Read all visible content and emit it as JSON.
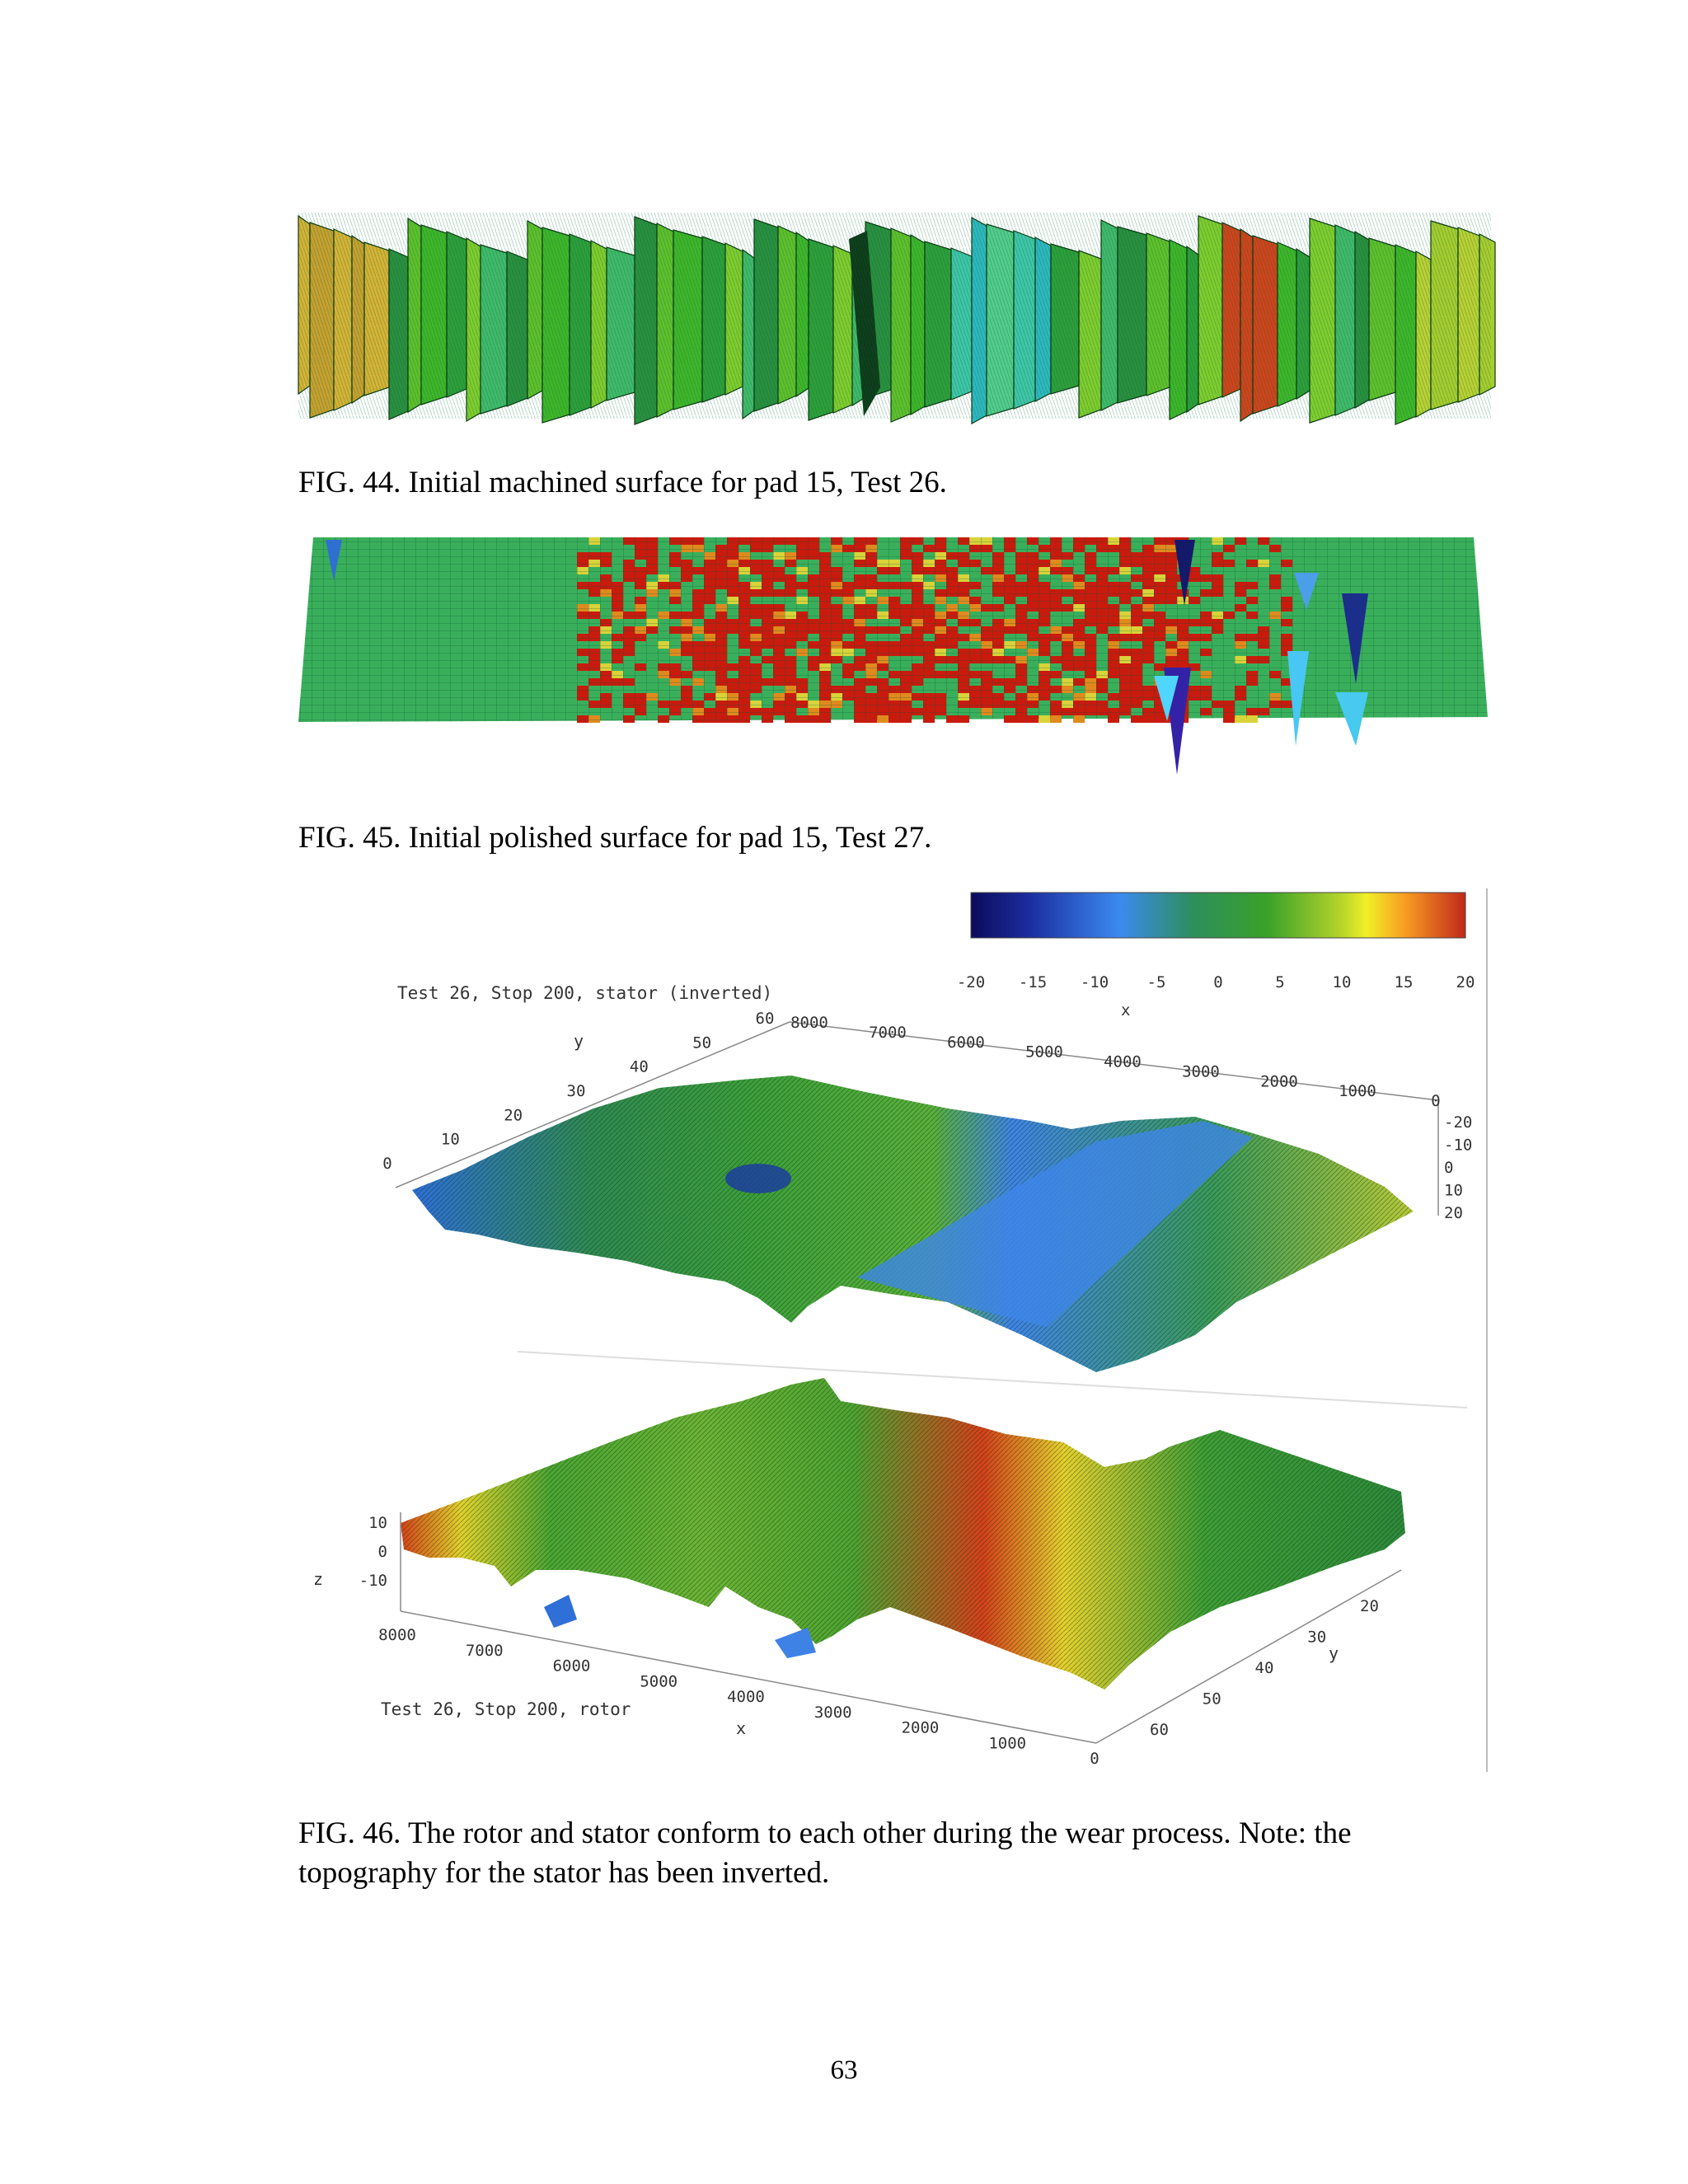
{
  "figures": {
    "fig44": {
      "caption": "FIG. 44. Initial machined surface for pad 15, Test 26."
    },
    "fig45": {
      "caption": "FIG. 45.  Initial polished surface for pad 15, Test 27."
    },
    "fig46": {
      "caption_line1": "FIG. 46.  The rotor and stator conform to each other during the wear process.  Note: the",
      "caption_line2": "topography for the stator has been inverted.",
      "stator_title": "Test 26, Stop 200, stator (inverted)",
      "rotor_title": "Test 26, Stop 200, rotor",
      "colorbar_ticks": [
        "-20",
        "-15",
        "-10",
        "-5",
        "0",
        "5",
        "10",
        "15",
        "20"
      ],
      "colorbar_label": "x",
      "stator_x_ticks": [
        "8000",
        "7000",
        "6000",
        "5000",
        "4000",
        "3000",
        "2000",
        "1000",
        "0"
      ],
      "stator_y_ticks": [
        "0",
        "10",
        "20",
        "30",
        "40",
        "50",
        "60"
      ],
      "stator_y_label": "y",
      "stator_z_ticks": [
        "-20",
        "-10",
        "0",
        "10",
        "20"
      ],
      "rotor_x_ticks": [
        "8000",
        "7000",
        "6000",
        "5000",
        "4000",
        "3000",
        "2000",
        "1000",
        "0"
      ],
      "rotor_x_label": "x",
      "rotor_y_ticks": [
        "20",
        "30",
        "40",
        "50",
        "60"
      ],
      "rotor_y_label": "y",
      "rotor_z_ticks": [
        "10",
        "0",
        "-10"
      ],
      "rotor_z_label": "z"
    }
  },
  "page_number": "63",
  "colors": {
    "green": "#3fb62a",
    "yellow_green": "#b9d033",
    "red": "#c81b0e",
    "blue": "#3b7be0",
    "cyan": "#33d3d0"
  }
}
